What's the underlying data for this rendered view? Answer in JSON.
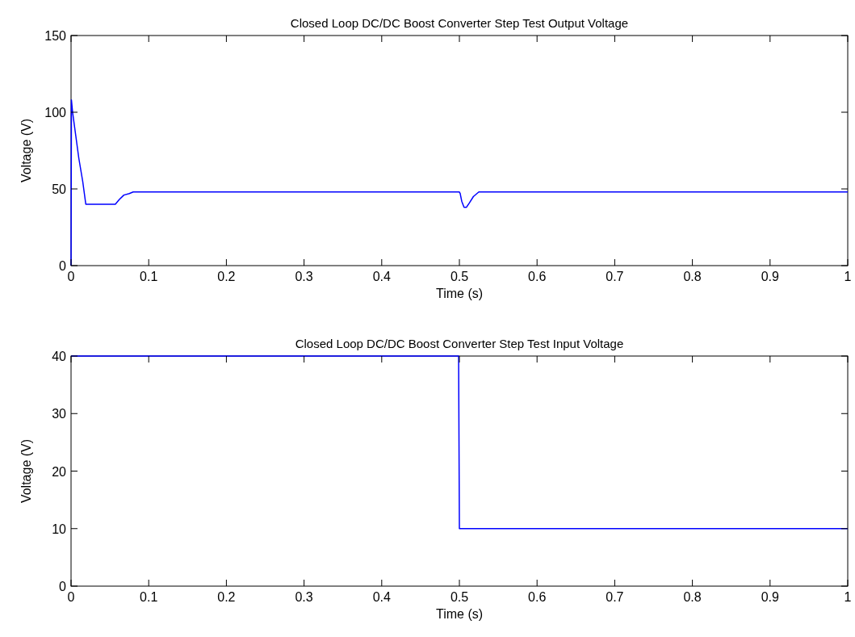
{
  "chart_data": [
    {
      "type": "line",
      "title": "Closed Loop DC/DC Boost Converter Step Test Output Voltage",
      "xlabel": "Time (s)",
      "ylabel": "Voltage (V)",
      "xlim": [
        0,
        1
      ],
      "ylim": [
        0,
        150
      ],
      "xticks": [
        0,
        0.1,
        0.2,
        0.3,
        0.4,
        0.5,
        0.6,
        0.7,
        0.8,
        0.9,
        1
      ],
      "yticks": [
        0,
        50,
        100,
        150
      ],
      "grid": false,
      "series": [
        {
          "color": "#0000ff",
          "x": [
            0,
            0.0005,
            0.002,
            0.006,
            0.01,
            0.015,
            0.019,
            0.057,
            0.062,
            0.068,
            0.075,
            0.08,
            0.5,
            0.501,
            0.503,
            0.506,
            0.509,
            0.513,
            0.518,
            0.525,
            1
          ],
          "values": [
            0,
            108,
            100,
            85,
            70,
            55,
            40,
            40,
            43,
            46,
            47,
            48,
            48,
            47,
            42,
            38,
            38,
            41,
            45,
            48,
            48
          ]
        }
      ]
    },
    {
      "type": "line",
      "title": "Closed Loop DC/DC Boost Converter Step Test Input Voltage",
      "xlabel": "Time (s)",
      "ylabel": "Voltage (V)",
      "xlim": [
        0,
        1
      ],
      "ylim": [
        0,
        40
      ],
      "xticks": [
        0,
        0.1,
        0.2,
        0.3,
        0.4,
        0.5,
        0.6,
        0.7,
        0.8,
        0.9,
        1
      ],
      "yticks": [
        0,
        10,
        20,
        30,
        40
      ],
      "grid": false,
      "series": [
        {
          "color": "#0000ff",
          "x": [
            0,
            0.499,
            0.5,
            1
          ],
          "values": [
            40,
            40,
            10,
            10
          ]
        }
      ]
    }
  ]
}
